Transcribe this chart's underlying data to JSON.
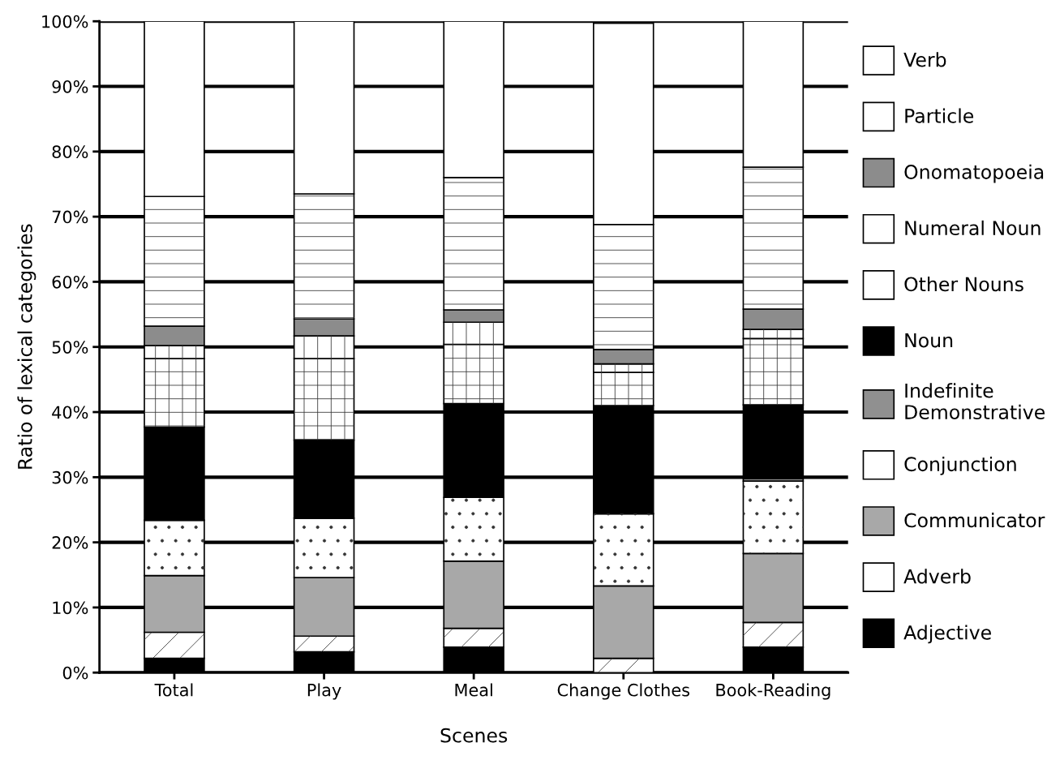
{
  "chart_data": {
    "type": "bar",
    "stacked": true,
    "xlabel": "Scenes",
    "ylabel": "Ratio of lexical categories",
    "categories": [
      "Total",
      "Play",
      "Meal",
      "Change Clothes",
      "Book-Reading"
    ],
    "series": [
      {
        "name": "Adjective",
        "color": "#000000",
        "values": [
          2.2,
          3.2,
          3.9,
          null,
          3.9
        ]
      },
      {
        "name": "Adverb",
        "color": "#ffffff",
        "values": [
          4.0,
          2.4,
          2.9,
          2.2,
          3.8
        ]
      },
      {
        "name": "Communicator",
        "color": "#a8a8a8",
        "values": [
          8.7,
          9.0,
          10.3,
          11.1,
          10.6
        ]
      },
      {
        "name": "Conjunction",
        "color": "#ffffff",
        "values": [
          8.5,
          9.1,
          9.8,
          11.1,
          11.1
        ]
      },
      {
        "name": "Indefinite\nDemonstrative",
        "color": "#909090",
        "values": [
          0,
          0,
          0,
          0,
          0.4
        ]
      },
      {
        "name": "Noun",
        "color": "#000000",
        "values": [
          14.3,
          12.0,
          14.4,
          16.6,
          11.3
        ]
      },
      {
        "name": "Other Nouns",
        "color": "#ffffff",
        "values": [
          10.5,
          12.5,
          9.1,
          5.1,
          10.2
        ]
      },
      {
        "name": "Numeral Noun",
        "color": "#ffffff",
        "values": [
          2.0,
          3.5,
          3.4,
          1.3,
          1.4
        ]
      },
      {
        "name": "Onomatopoeia",
        "color": "#8c8c8c",
        "values": [
          3.0,
          2.6,
          1.9,
          2.2,
          3.1
        ]
      },
      {
        "name": "Particle",
        "color": "#ffffff",
        "values": [
          19.9,
          19.2,
          20.3,
          19.2,
          21.8
        ]
      },
      {
        "name": "Verb",
        "color": "#ffffff",
        "values": [
          26.9,
          26.5,
          24.0,
          30.9,
          22.4
        ]
      }
    ],
    "ylim": [
      0,
      100
    ],
    "yticks": [
      {
        "value": 0,
        "label": "0%"
      },
      {
        "value": 10,
        "label": "10%"
      },
      {
        "value": 20,
        "label": "20%"
      },
      {
        "value": 30,
        "label": "30%"
      },
      {
        "value": 40,
        "label": "40%"
      },
      {
        "value": 50,
        "label": "50%"
      },
      {
        "value": 60,
        "label": "60%"
      },
      {
        "value": 70,
        "label": "70%"
      },
      {
        "value": 80,
        "label": "80%"
      },
      {
        "value": 90,
        "label": "90%"
      },
      {
        "value": 100,
        "label": "100%"
      }
    ],
    "grid": "y",
    "legend": "right"
  }
}
